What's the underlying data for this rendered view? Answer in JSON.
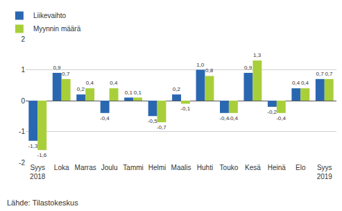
{
  "chart_data": {
    "type": "bar",
    "categories": [
      "Syys 2018",
      "Loka",
      "Marras",
      "Joulu",
      "Tammi",
      "Helmi",
      "Maalis",
      "Huhti",
      "Touko",
      "Kesä",
      "Heinä",
      "Elo",
      "Syys 2019"
    ],
    "series": [
      {
        "name": "Liikevaihto",
        "color": "#2a67b1",
        "values": [
          -1.3,
          0.9,
          0.2,
          -0.4,
          0.1,
          -0.5,
          0.2,
          1.0,
          -0.4,
          0.9,
          -0.2,
          0.4,
          0.7
        ],
        "value_labels": [
          "-1,3",
          "0,9",
          "0,2",
          "-0,4",
          "0,1",
          "-0,5",
          "0,2",
          "1,0",
          "-0,4",
          "0,9",
          "-0,2",
          "0,4",
          "0,7"
        ]
      },
      {
        "name": "Myynnin määrä",
        "color": "#a8cf3a",
        "values": [
          -1.6,
          0.7,
          0.4,
          0.4,
          0.1,
          -0.7,
          -0.1,
          0.8,
          -0.4,
          1.3,
          -0.4,
          0.4,
          0.7
        ],
        "value_labels": [
          "-1,6",
          "0,7",
          "0,4",
          "0,4",
          "0,1",
          "-0,7",
          "-0,1",
          "0,8",
          "-0,4",
          "1,3",
          "-0,4",
          "0,4",
          "0,7"
        ]
      }
    ],
    "ylim": [
      -2,
      2
    ],
    "yticks": [
      -2,
      -1,
      0,
      1,
      2
    ],
    "grid": true,
    "legend": "top-left",
    "data_labels": true,
    "annotations": [
      "Lähde: Tilastokeskus"
    ]
  }
}
